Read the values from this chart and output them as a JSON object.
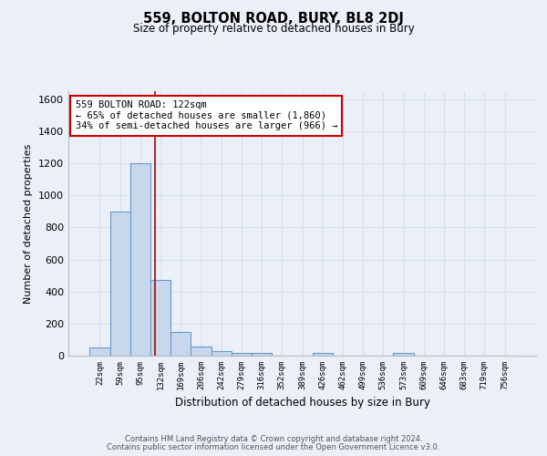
{
  "title": "559, BOLTON ROAD, BURY, BL8 2DJ",
  "subtitle": "Size of property relative to detached houses in Bury",
  "xlabel": "Distribution of detached houses by size in Bury",
  "ylabel": "Number of detached properties",
  "bin_labels": [
    "22sqm",
    "59sqm",
    "95sqm",
    "132sqm",
    "169sqm",
    "206sqm",
    "242sqm",
    "279sqm",
    "316sqm",
    "352sqm",
    "389sqm",
    "426sqm",
    "462sqm",
    "499sqm",
    "536sqm",
    "573sqm",
    "609sqm",
    "646sqm",
    "683sqm",
    "719sqm",
    "756sqm"
  ],
  "bar_heights": [
    50,
    900,
    1200,
    470,
    150,
    55,
    30,
    15,
    15,
    0,
    0,
    15,
    0,
    0,
    0,
    15,
    0,
    0,
    0,
    0,
    0
  ],
  "bar_color": "#c8d8ec",
  "bar_edge_color": "#6699cc",
  "background_color": "#eaeff8",
  "grid_color": "#d8dff0",
  "red_line_x": 2.72,
  "annotation_text": "559 BOLTON ROAD: 122sqm\n← 65% of detached houses are smaller (1,860)\n34% of semi-detached houses are larger (966) →",
  "annotation_box_color": "#ffffff",
  "annotation_border_color": "#cc0000",
  "ylim": [
    0,
    1650
  ],
  "yticks": [
    0,
    200,
    400,
    600,
    800,
    1000,
    1200,
    1400,
    1600
  ],
  "fig_bg_color": "#eaeff8",
  "footer_line1": "Contains HM Land Registry data © Crown copyright and database right 2024.",
  "footer_line2": "Contains public sector information licensed under the Open Government Licence v3.0."
}
